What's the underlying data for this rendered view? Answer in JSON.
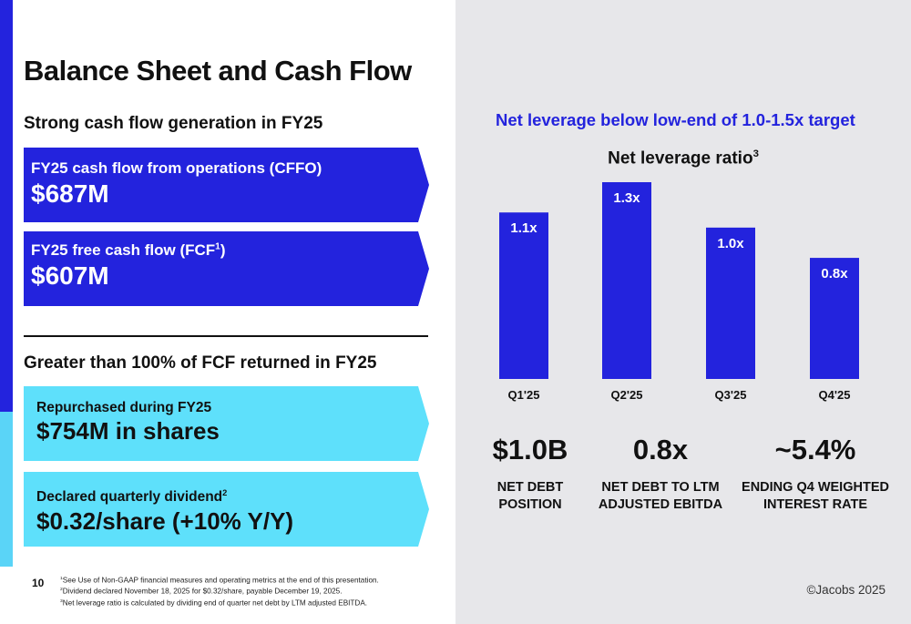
{
  "title": "Balance Sheet and Cash Flow",
  "left": {
    "section1_heading": "Strong cash flow generation in FY25",
    "cffo": {
      "label": "FY25 cash flow from operations (CFFO)",
      "value": "$687M"
    },
    "fcf": {
      "label": "FY25 free cash flow (FCF",
      "label_sup": "1",
      "label_end": ")",
      "value": "$607M"
    },
    "section2_heading": "Greater than 100% of FCF returned in FY25",
    "repurchase": {
      "label": "Repurchased during FY25",
      "value": "$754M in shares"
    },
    "dividend": {
      "label": "Declared quarterly dividend",
      "label_sup": "2",
      "value": "$0.32/share (+10% Y/Y)"
    }
  },
  "right": {
    "heading": "Net leverage below low-end of 1.0-1.5x target",
    "chart_title": "Net leverage ratio",
    "chart_title_sup": "3",
    "stats": [
      {
        "value": "$1.0B",
        "line1": "NET DEBT",
        "line2": "POSITION"
      },
      {
        "value": "0.8x",
        "line1": "NET DEBT TO LTM",
        "line2": "ADJUSTED EBITDA"
      },
      {
        "value": "~5.4%",
        "line1": "ENDING Q4 WEIGHTED",
        "line2": "INTEREST RATE"
      }
    ]
  },
  "chart_data": {
    "type": "bar",
    "title": "Net leverage ratio",
    "categories": [
      "Q1'25",
      "Q2'25",
      "Q3'25",
      "Q4'25"
    ],
    "values": [
      1.1,
      1.3,
      1.0,
      0.8
    ],
    "data_labels": [
      "1.1x",
      "1.3x",
      "1.0x",
      "0.8x"
    ],
    "ylim": [
      0,
      1.3
    ],
    "xlabel": "",
    "ylabel": "",
    "bar_color": "#2323dd"
  },
  "footer": {
    "page_number": "10",
    "footnotes": [
      "See Use of Non-GAAP financial measures and operating metrics at the end of this presentation.",
      "Dividend declared November 18, 2025 for $0.32/share, payable December 19, 2025.",
      "Net leverage ratio is calculated by dividing end of quarter net debt by LTM adjusted EBITDA."
    ],
    "footnote_marks": [
      "1",
      "2",
      "3"
    ],
    "copyright": "©Jacobs 2025"
  },
  "colors": {
    "primary_blue": "#2323dd",
    "light_cyan": "#5ee0fb",
    "panel_gray": "#e7e7ea"
  }
}
